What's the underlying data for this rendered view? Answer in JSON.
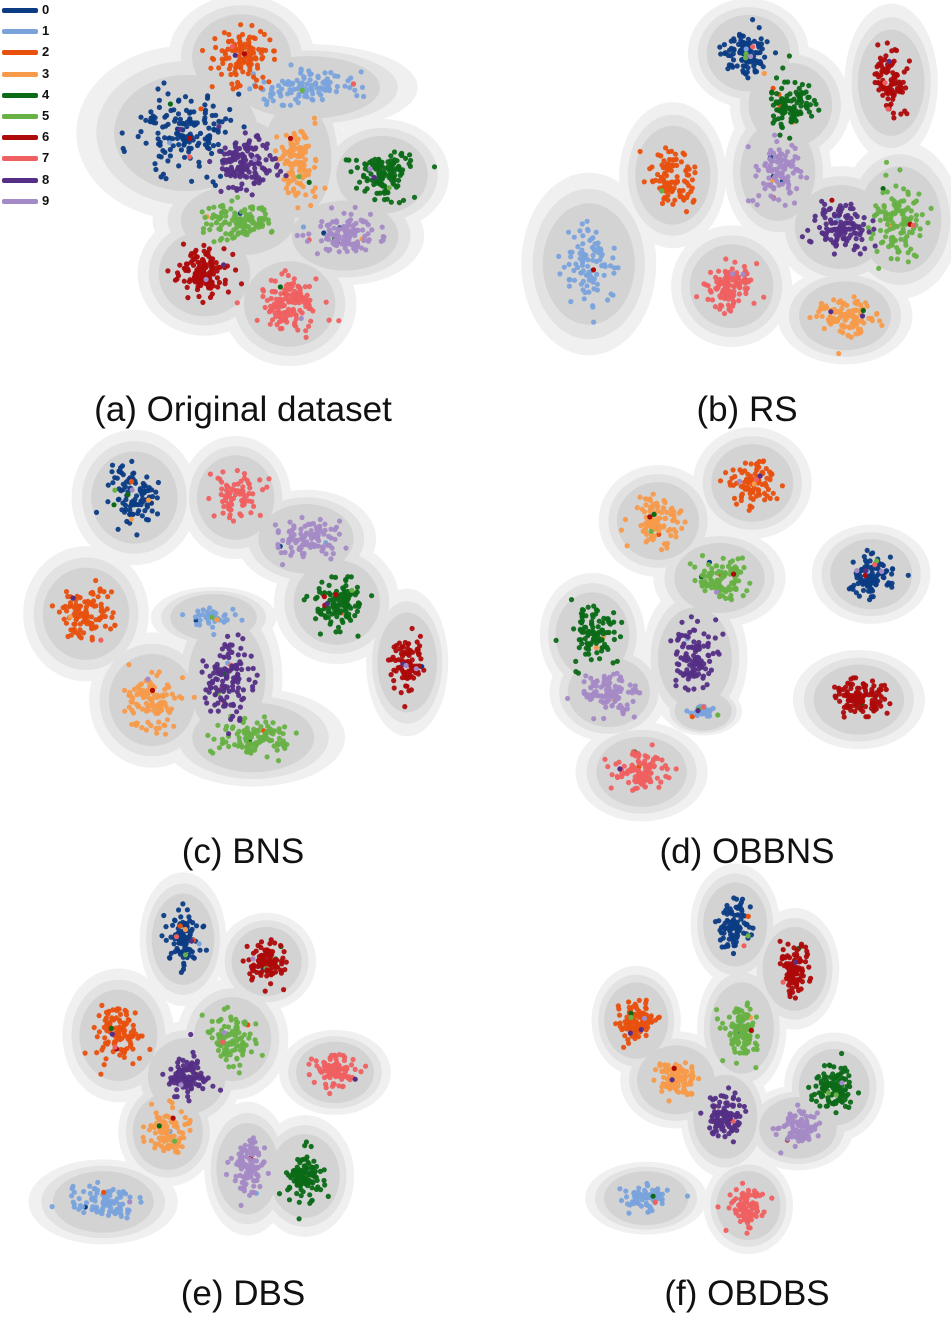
{
  "chart_data": {
    "type": "scatter",
    "legend": {
      "placement": "top-left",
      "entries": [
        "0",
        "1",
        "2",
        "3",
        "4",
        "5",
        "6",
        "7",
        "8",
        "9"
      ],
      "colors": [
        "#0b3c84",
        "#7aa3dc",
        "#e8500e",
        "#f79a4a",
        "#0c6a17",
        "#67b145",
        "#ae0a0a",
        "#ef6060",
        "#552f86",
        "#a48ac6"
      ]
    },
    "panels": [
      {
        "caption": "(a) Original dataset",
        "clusters": [
          {
            "label": 0,
            "x": 0.3,
            "y": 0.35,
            "spread": [
              0.16,
              0.12
            ],
            "n": 160
          },
          {
            "label": 1,
            "x": 0.63,
            "y": 0.23,
            "spread": [
              0.16,
              0.05
            ],
            "n": 110
          },
          {
            "label": 2,
            "x": 0.45,
            "y": 0.15,
            "spread": [
              0.1,
              0.08
            ],
            "n": 120
          },
          {
            "label": 3,
            "x": 0.6,
            "y": 0.42,
            "spread": [
              0.06,
              0.12
            ],
            "n": 120
          },
          {
            "label": 4,
            "x": 0.83,
            "y": 0.46,
            "spread": [
              0.09,
              0.07
            ],
            "n": 130
          },
          {
            "label": 5,
            "x": 0.44,
            "y": 0.58,
            "spread": [
              0.12,
              0.06
            ],
            "n": 120
          },
          {
            "label": 6,
            "x": 0.35,
            "y": 0.72,
            "spread": [
              0.09,
              0.08
            ],
            "n": 140
          },
          {
            "label": 7,
            "x": 0.58,
            "y": 0.8,
            "spread": [
              0.09,
              0.08
            ],
            "n": 140
          },
          {
            "label": 8,
            "x": 0.46,
            "y": 0.43,
            "spread": [
              0.08,
              0.08
            ],
            "n": 140
          },
          {
            "label": 9,
            "x": 0.73,
            "y": 0.62,
            "spread": [
              0.11,
              0.06
            ],
            "n": 120
          }
        ]
      },
      {
        "caption": "(b) RS",
        "clusters": [
          {
            "label": 0,
            "x": 0.52,
            "y": 0.13,
            "spread": [
              0.07,
              0.07
            ],
            "n": 110
          },
          {
            "label": 1,
            "x": 0.14,
            "y": 0.7,
            "spread": [
              0.08,
              0.13
            ],
            "n": 100
          },
          {
            "label": 2,
            "x": 0.34,
            "y": 0.46,
            "spread": [
              0.06,
              0.1
            ],
            "n": 100
          },
          {
            "label": 3,
            "x": 0.75,
            "y": 0.84,
            "spread": [
              0.08,
              0.06
            ],
            "n": 110
          },
          {
            "label": 4,
            "x": 0.62,
            "y": 0.27,
            "spread": [
              0.07,
              0.08
            ],
            "n": 100
          },
          {
            "label": 5,
            "x": 0.88,
            "y": 0.58,
            "spread": [
              0.07,
              0.11
            ],
            "n": 120
          },
          {
            "label": 6,
            "x": 0.86,
            "y": 0.21,
            "spread": [
              0.05,
              0.11
            ],
            "n": 90
          },
          {
            "label": 7,
            "x": 0.48,
            "y": 0.76,
            "spread": [
              0.07,
              0.08
            ],
            "n": 110
          },
          {
            "label": 8,
            "x": 0.74,
            "y": 0.6,
            "spread": [
              0.08,
              0.08
            ],
            "n": 120
          },
          {
            "label": 9,
            "x": 0.59,
            "y": 0.45,
            "spread": [
              0.06,
              0.1
            ],
            "n": 100
          }
        ]
      },
      {
        "caption": "(c) BNS",
        "clusters": [
          {
            "label": 0,
            "x": 0.26,
            "y": 0.14,
            "spread": [
              0.07,
              0.09
            ],
            "n": 100
          },
          {
            "label": 1,
            "x": 0.44,
            "y": 0.46,
            "spread": [
              0.07,
              0.03
            ],
            "n": 40
          },
          {
            "label": 2,
            "x": 0.15,
            "y": 0.45,
            "spread": [
              0.07,
              0.09
            ],
            "n": 110
          },
          {
            "label": 3,
            "x": 0.3,
            "y": 0.68,
            "spread": [
              0.07,
              0.09
            ],
            "n": 110
          },
          {
            "label": 4,
            "x": 0.72,
            "y": 0.42,
            "spread": [
              0.07,
              0.08
            ],
            "n": 110
          },
          {
            "label": 5,
            "x": 0.53,
            "y": 0.78,
            "spread": [
              0.11,
              0.06
            ],
            "n": 110
          },
          {
            "label": 6,
            "x": 0.88,
            "y": 0.58,
            "spread": [
              0.04,
              0.1
            ],
            "n": 90
          },
          {
            "label": 7,
            "x": 0.49,
            "y": 0.14,
            "spread": [
              0.06,
              0.08
            ],
            "n": 80
          },
          {
            "label": 8,
            "x": 0.47,
            "y": 0.62,
            "spread": [
              0.06,
              0.12
            ],
            "n": 120
          },
          {
            "label": 9,
            "x": 0.65,
            "y": 0.25,
            "spread": [
              0.08,
              0.06
            ],
            "n": 100
          }
        ]
      },
      {
        "caption": "(d) OBBNS",
        "clusters": [
          {
            "label": 0,
            "x": 0.82,
            "y": 0.34,
            "spread": [
              0.07,
              0.06
            ],
            "n": 100
          },
          {
            "label": 1,
            "x": 0.41,
            "y": 0.7,
            "spread": [
              0.04,
              0.02
            ],
            "n": 30
          },
          {
            "label": 2,
            "x": 0.53,
            "y": 0.1,
            "spread": [
              0.07,
              0.07
            ],
            "n": 100
          },
          {
            "label": 3,
            "x": 0.3,
            "y": 0.2,
            "spread": [
              0.07,
              0.07
            ],
            "n": 100
          },
          {
            "label": 4,
            "x": 0.14,
            "y": 0.5,
            "spread": [
              0.06,
              0.08
            ],
            "n": 100
          },
          {
            "label": 5,
            "x": 0.45,
            "y": 0.35,
            "spread": [
              0.08,
              0.06
            ],
            "n": 100
          },
          {
            "label": 6,
            "x": 0.79,
            "y": 0.67,
            "spread": [
              0.08,
              0.06
            ],
            "n": 120
          },
          {
            "label": 7,
            "x": 0.26,
            "y": 0.86,
            "spread": [
              0.08,
              0.06
            ],
            "n": 110
          },
          {
            "label": 8,
            "x": 0.39,
            "y": 0.56,
            "spread": [
              0.06,
              0.1
            ],
            "n": 110
          },
          {
            "label": 9,
            "x": 0.18,
            "y": 0.65,
            "spread": [
              0.07,
              0.06
            ],
            "n": 100
          }
        ]
      },
      {
        "caption": "(e) DBS",
        "clusters": [
          {
            "label": 0,
            "x": 0.35,
            "y": 0.16,
            "spread": [
              0.05,
              0.09
            ],
            "n": 100
          },
          {
            "label": 1,
            "x": 0.14,
            "y": 0.87,
            "spread": [
              0.1,
              0.05
            ],
            "n": 90
          },
          {
            "label": 2,
            "x": 0.18,
            "y": 0.42,
            "spread": [
              0.07,
              0.09
            ],
            "n": 110
          },
          {
            "label": 3,
            "x": 0.31,
            "y": 0.68,
            "spread": [
              0.06,
              0.07
            ],
            "n": 100
          },
          {
            "label": 4,
            "x": 0.67,
            "y": 0.8,
            "spread": [
              0.06,
              0.08
            ],
            "n": 110
          },
          {
            "label": 5,
            "x": 0.48,
            "y": 0.43,
            "spread": [
              0.07,
              0.08
            ],
            "n": 100
          },
          {
            "label": 6,
            "x": 0.57,
            "y": 0.22,
            "spread": [
              0.06,
              0.06
            ],
            "n": 100
          },
          {
            "label": 7,
            "x": 0.75,
            "y": 0.52,
            "spread": [
              0.07,
              0.05
            ],
            "n": 90
          },
          {
            "label": 8,
            "x": 0.36,
            "y": 0.53,
            "spread": [
              0.07,
              0.07
            ],
            "n": 110
          },
          {
            "label": 9,
            "x": 0.52,
            "y": 0.78,
            "spread": [
              0.05,
              0.09
            ],
            "n": 100
          }
        ]
      },
      {
        "caption": "(f) OBDBS",
        "clusters": [
          {
            "label": 0,
            "x": 0.44,
            "y": 0.12,
            "spread": [
              0.06,
              0.08
            ],
            "n": 90
          },
          {
            "label": 1,
            "x": 0.17,
            "y": 0.86,
            "spread": [
              0.09,
              0.04
            ],
            "n": 70
          },
          {
            "label": 2,
            "x": 0.14,
            "y": 0.38,
            "spread": [
              0.06,
              0.07
            ],
            "n": 100
          },
          {
            "label": 3,
            "x": 0.26,
            "y": 0.54,
            "spread": [
              0.08,
              0.06
            ],
            "n": 100
          },
          {
            "label": 4,
            "x": 0.74,
            "y": 0.56,
            "spread": [
              0.07,
              0.07
            ],
            "n": 110
          },
          {
            "label": 5,
            "x": 0.46,
            "y": 0.4,
            "spread": [
              0.06,
              0.09
            ],
            "n": 100
          },
          {
            "label": 6,
            "x": 0.62,
            "y": 0.24,
            "spread": [
              0.06,
              0.08
            ],
            "n": 100
          },
          {
            "label": 7,
            "x": 0.48,
            "y": 0.88,
            "spread": [
              0.06,
              0.06
            ],
            "n": 90
          },
          {
            "label": 8,
            "x": 0.41,
            "y": 0.64,
            "spread": [
              0.06,
              0.08
            ],
            "n": 110
          },
          {
            "label": 9,
            "x": 0.63,
            "y": 0.67,
            "spread": [
              0.08,
              0.05
            ],
            "n": 90
          }
        ]
      }
    ]
  }
}
